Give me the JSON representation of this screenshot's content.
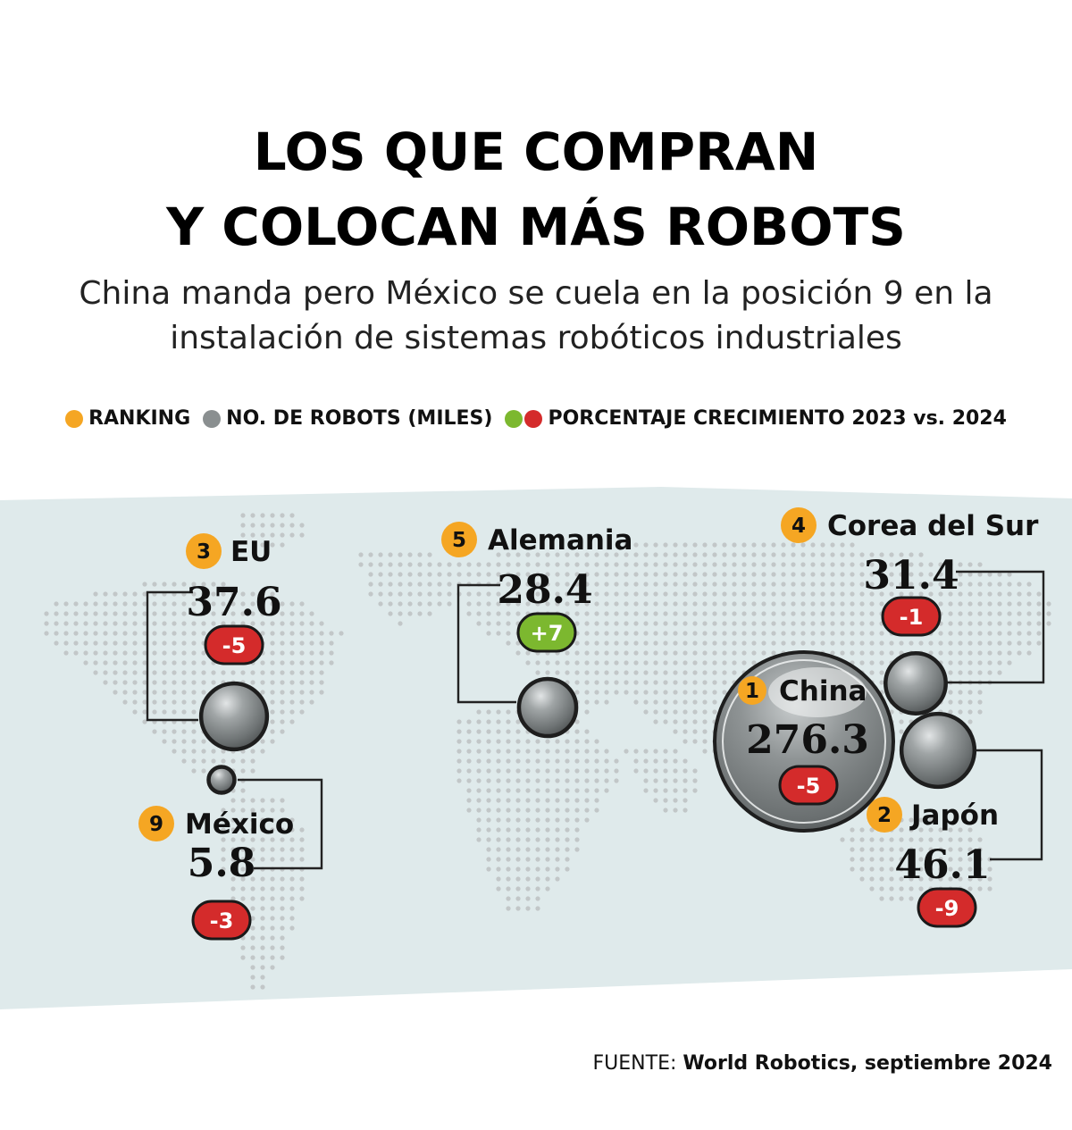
{
  "title": {
    "line1": "LOS QUE COMPRAN",
    "line2": "Y COLOCAN MÁS ROBOTS"
  },
  "subtitle": {
    "line1": "China manda pero México se cuela en la posición 9 en la",
    "line2": "instalación de sistemas robóticos industriales"
  },
  "legend": {
    "ranking": "RANKING",
    "robots": "NO. DE ROBOTS (MILES)",
    "growth": "PORCENTAJE CRECIMIENTO 2023 vs. 2024"
  },
  "source": {
    "prefix": "FUENTE:",
    "text": "World Robotics, septiembre 2024"
  },
  "colors": {
    "ranking": "#f5a623",
    "robots": "#8a8f90",
    "growth_positive": "#7cb82f",
    "growth_negative": "#d42b2b",
    "map_band": "#dfeaeb",
    "map_dots": "#c2c7c8"
  },
  "chart_data": {
    "type": "bubble",
    "series": [
      {
        "rank": 1,
        "country": "China",
        "robots_thousands": 276.3,
        "value_label": "276.3",
        "growth_pct": -5,
        "growth_label": "-5"
      },
      {
        "rank": 2,
        "country": "Japón",
        "robots_thousands": 46.1,
        "value_label": "46.1",
        "growth_pct": -9,
        "growth_label": "-9"
      },
      {
        "rank": 3,
        "country": "EU",
        "robots_thousands": 37.6,
        "value_label": "37.6",
        "growth_pct": -5,
        "growth_label": "-5"
      },
      {
        "rank": 4,
        "country": "Corea del Sur",
        "robots_thousands": 31.4,
        "value_label": "31.4",
        "growth_pct": -1,
        "growth_label": "-1"
      },
      {
        "rank": 5,
        "country": "Alemania",
        "robots_thousands": 28.4,
        "value_label": "28.4",
        "growth_pct": 7,
        "growth_label": "+7"
      },
      {
        "rank": 9,
        "country": "México",
        "robots_thousands": 5.8,
        "value_label": "5.8",
        "growth_pct": -3,
        "growth_label": "-3"
      }
    ]
  }
}
